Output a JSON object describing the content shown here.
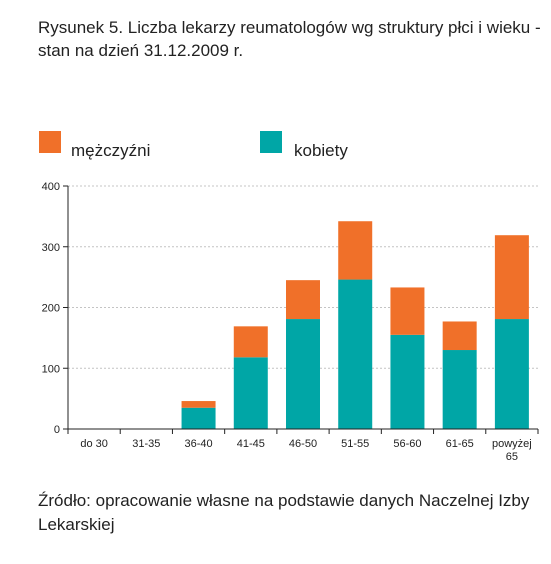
{
  "title": "Rysunek 5. Liczba lekarzy reumatologów wg struktury płci i wieku - stan na dzień 31.12.2009 r.",
  "source": "Źródło: opracowanie własne na podstawie danych Naczelnej Izby Lekarskiej",
  "chart_data": {
    "type": "bar",
    "stacked": true,
    "categories": [
      "do 30",
      "31-35",
      "36-40",
      "41-45",
      "46-50",
      "51-55",
      "56-60",
      "61-65",
      "powyżej 65"
    ],
    "series": [
      {
        "name": "kobiety",
        "color": "#00a6a6",
        "values": [
          0,
          0,
          35,
          118,
          181,
          246,
          155,
          130,
          181
        ]
      },
      {
        "name": "mężczyźni",
        "color": "#f07029",
        "values": [
          0,
          0,
          11,
          51,
          64,
          96,
          78,
          47,
          138
        ]
      }
    ],
    "ylim": [
      0,
      400
    ],
    "yticks": [
      0,
      100,
      200,
      300,
      400
    ],
    "grid": true,
    "legend_placement": "top"
  }
}
